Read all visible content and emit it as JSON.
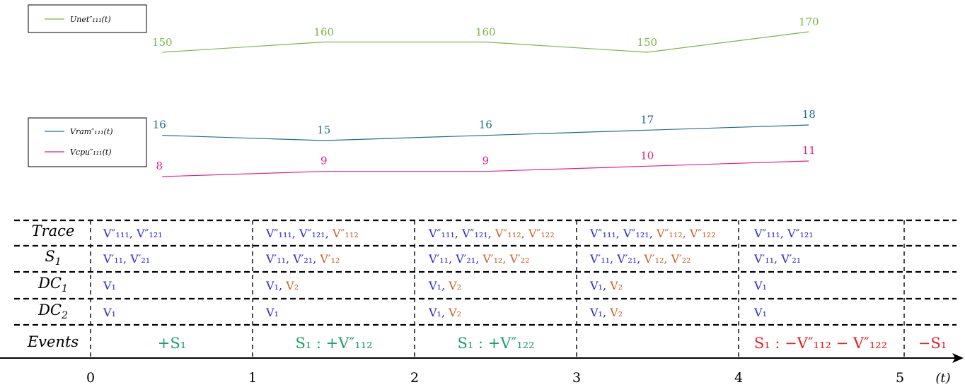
{
  "colors": {
    "net": "#7ab648",
    "ram": "#1f6f8b",
    "cpu": "#e0218a",
    "blue": "#2b2bd9",
    "orange": "#c8642a",
    "green": "#1aa06b",
    "red": "#ee1c25",
    "black": "#000000"
  },
  "legend_net": [
    {
      "label": "Unet″₁₁₁(t)",
      "color_key": "net"
    }
  ],
  "legend_res": [
    {
      "label": "Vram″₁₁₁(t)",
      "color_key": "ram"
    },
    {
      "label": "Vcpu″₁₁₁(t)",
      "color_key": "cpu"
    }
  ],
  "chart_data": [
    {
      "type": "line",
      "x": [
        0.5,
        1.5,
        2.5,
        3.5,
        4.5
      ],
      "series": [
        {
          "name": "Unet″₁₁₁(t)",
          "values": [
            150,
            160,
            160,
            150,
            170
          ]
        }
      ],
      "ylim": [
        150,
        170
      ]
    },
    {
      "type": "line",
      "x": [
        0.5,
        1.5,
        2.5,
        3.5,
        4.5
      ],
      "series": [
        {
          "name": "Vram″₁₁₁(t)",
          "values": [
            16,
            15,
            16,
            17,
            18
          ]
        },
        {
          "name": "Vcpu″₁₁₁(t)",
          "values": [
            8,
            9,
            9,
            10,
            11
          ]
        }
      ]
    }
  ],
  "timeline": {
    "ticks": [
      "0",
      "1",
      "2",
      "3",
      "4",
      "5"
    ],
    "unit": "(t)",
    "rows": [
      {
        "label": "Trace",
        "sub": "",
        "cells": [
          [
            {
              "t": "V″₁₁₁, V″₁₂₁",
              "c": "blue"
            }
          ],
          [
            {
              "t": "V″₁₁₁, V″₁₂₁, ",
              "c": "blue"
            },
            {
              "t": "V″₁₁₂",
              "c": "orange"
            }
          ],
          [
            {
              "t": "V″₁₁₁, V″₁₂₁, ",
              "c": "blue"
            },
            {
              "t": "V″₁₁₂, V″₁₂₂",
              "c": "orange"
            }
          ],
          [
            {
              "t": "V″₁₁₁, V″₁₂₁, ",
              "c": "blue"
            },
            {
              "t": "V″₁₁₂, V″₁₂₂",
              "c": "orange"
            }
          ],
          [
            {
              "t": "V″₁₁₁, V″₁₂₁",
              "c": "blue"
            }
          ],
          []
        ]
      },
      {
        "label": "S",
        "sub": "1",
        "cells": [
          [
            {
              "t": "V′₁₁, V′₂₁",
              "c": "blue"
            }
          ],
          [
            {
              "t": "V′₁₁, V′₂₁, ",
              "c": "blue"
            },
            {
              "t": "V′₁₂",
              "c": "orange"
            }
          ],
          [
            {
              "t": "V′₁₁, V′₂₁, ",
              "c": "blue"
            },
            {
              "t": "V′₁₂, V′₂₂",
              "c": "orange"
            }
          ],
          [
            {
              "t": "V′₁₁, V′₂₁, ",
              "c": "blue"
            },
            {
              "t": "V′₁₂, V′₂₂",
              "c": "orange"
            }
          ],
          [
            {
              "t": "V′₁₁, V′₂₁",
              "c": "blue"
            }
          ],
          []
        ]
      },
      {
        "label": "DC",
        "sub": "1",
        "cells": [
          [
            {
              "t": "V₁",
              "c": "blue"
            }
          ],
          [
            {
              "t": "V₁, ",
              "c": "blue"
            },
            {
              "t": "V₂",
              "c": "orange"
            }
          ],
          [
            {
              "t": "V₁, ",
              "c": "blue"
            },
            {
              "t": "V₂",
              "c": "orange"
            }
          ],
          [
            {
              "t": "V₁, ",
              "c": "blue"
            },
            {
              "t": "V₂",
              "c": "orange"
            }
          ],
          [
            {
              "t": "V₁",
              "c": "blue"
            }
          ],
          []
        ]
      },
      {
        "label": "DC",
        "sub": "2",
        "cells": [
          [
            {
              "t": "V₁",
              "c": "blue"
            }
          ],
          [
            {
              "t": "V₁",
              "c": "blue"
            }
          ],
          [
            {
              "t": "V₁, ",
              "c": "blue"
            },
            {
              "t": "V₂",
              "c": "orange"
            }
          ],
          [
            {
              "t": "V₁, ",
              "c": "blue"
            },
            {
              "t": "V₂",
              "c": "orange"
            }
          ],
          [
            {
              "t": "V₁",
              "c": "blue"
            }
          ],
          []
        ]
      },
      {
        "label": "Events",
        "sub": "",
        "cells": [
          [
            {
              "t": "+S₁",
              "c": "green"
            }
          ],
          [
            {
              "t": "S₁ : +V″₁₁₂",
              "c": "green"
            }
          ],
          [
            {
              "t": "S₁ : +V″₁₂₂",
              "c": "green"
            }
          ],
          [],
          [
            {
              "t": "S₁ : −V″₁₁₂ − V″₁₂₂",
              "c": "red"
            }
          ],
          [
            {
              "t": "−S₁",
              "c": "red"
            }
          ]
        ]
      }
    ]
  }
}
